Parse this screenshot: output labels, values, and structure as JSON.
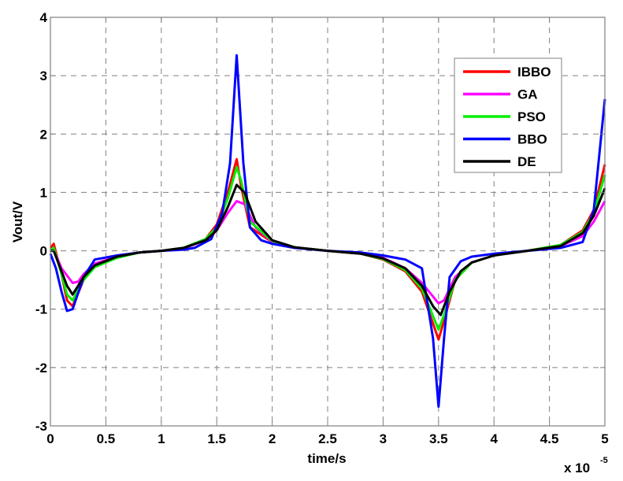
{
  "chart_data": {
    "type": "line",
    "title": "",
    "xlabel": "time/s",
    "ylabel": "Vout/V",
    "x_multiplier_label": "x 10",
    "x_multiplier_exp": "-5",
    "xlim": [
      0,
      5
    ],
    "ylim": [
      -3,
      4
    ],
    "xticks": [
      0,
      0.5,
      1,
      1.5,
      2,
      2.5,
      3,
      3.5,
      4,
      4.5,
      5
    ],
    "xtick_labels": [
      "0",
      "0.5",
      "1",
      "1.5",
      "2",
      "2.5",
      "3",
      "3.5",
      "4",
      "4.5",
      "5"
    ],
    "yticks": [
      -3,
      -2,
      -1,
      0,
      1,
      2,
      3,
      4
    ],
    "ytick_labels": [
      "-3",
      "-2",
      "-1",
      "0",
      "1",
      "2",
      "3",
      "4"
    ],
    "grid": true,
    "legend_position": "upper right",
    "series": [
      {
        "name": "IBBO",
        "color": "#ff0000",
        "x": [
          0,
          0.03,
          0.1,
          0.15,
          0.2,
          0.3,
          0.4,
          0.6,
          0.8,
          1.0,
          1.2,
          1.4,
          1.5,
          1.6,
          1.68,
          1.72,
          1.8,
          2.0,
          2.2,
          2.5,
          2.8,
          3.0,
          3.2,
          3.35,
          3.5,
          3.55,
          3.65,
          3.8,
          4.0,
          4.3,
          4.6,
          4.8,
          4.9,
          5.0
        ],
        "y": [
          0.05,
          0.12,
          -0.4,
          -0.85,
          -0.95,
          -0.5,
          -0.25,
          -0.1,
          -0.03,
          0,
          0.05,
          0.2,
          0.45,
          1.0,
          1.57,
          1.1,
          0.4,
          0.15,
          0.06,
          0,
          -0.05,
          -0.15,
          -0.35,
          -0.7,
          -1.52,
          -1.2,
          -0.5,
          -0.2,
          -0.08,
          0,
          0.1,
          0.35,
          0.7,
          1.48
        ]
      },
      {
        "name": "GA",
        "color": "#ff00ff",
        "x": [
          0,
          0.03,
          0.1,
          0.2,
          0.25,
          0.3,
          0.4,
          0.6,
          0.8,
          1.0,
          1.2,
          1.4,
          1.5,
          1.6,
          1.68,
          1.75,
          1.85,
          2.0,
          2.2,
          2.5,
          2.8,
          3.0,
          3.2,
          3.35,
          3.5,
          3.55,
          3.65,
          3.8,
          4.0,
          4.3,
          4.6,
          4.8,
          4.9,
          5.0
        ],
        "y": [
          0,
          0.02,
          -0.3,
          -0.55,
          -0.53,
          -0.4,
          -0.22,
          -0.1,
          -0.03,
          0,
          0.04,
          0.18,
          0.35,
          0.65,
          0.85,
          0.8,
          0.4,
          0.15,
          0.06,
          0,
          -0.05,
          -0.12,
          -0.3,
          -0.55,
          -0.9,
          -0.85,
          -0.45,
          -0.2,
          -0.08,
          0,
          0.08,
          0.25,
          0.5,
          0.85
        ]
      },
      {
        "name": "PSO",
        "color": "#00ee00",
        "x": [
          0,
          0.03,
          0.1,
          0.15,
          0.2,
          0.3,
          0.4,
          0.6,
          0.8,
          1.0,
          1.2,
          1.4,
          1.5,
          1.6,
          1.68,
          1.72,
          1.8,
          2.0,
          2.2,
          2.5,
          2.8,
          3.0,
          3.2,
          3.35,
          3.5,
          3.55,
          3.65,
          3.8,
          4.0,
          4.3,
          4.6,
          4.8,
          4.9,
          5.0
        ],
        "y": [
          0,
          0.05,
          -0.4,
          -0.75,
          -0.85,
          -0.5,
          -0.28,
          -0.12,
          -0.03,
          0,
          0.05,
          0.2,
          0.4,
          0.9,
          1.43,
          1.2,
          0.5,
          0.17,
          0.06,
          0,
          -0.05,
          -0.14,
          -0.33,
          -0.65,
          -1.35,
          -1.1,
          -0.5,
          -0.2,
          -0.08,
          0,
          0.1,
          0.32,
          0.65,
          1.3
        ]
      },
      {
        "name": "BBO",
        "color": "#0000ff",
        "x": [
          0,
          0.05,
          0.1,
          0.15,
          0.2,
          0.3,
          0.4,
          0.6,
          0.8,
          1.0,
          1.2,
          1.3,
          1.45,
          1.55,
          1.62,
          1.68,
          1.74,
          1.8,
          1.9,
          2.0,
          2.2,
          2.5,
          2.8,
          3.0,
          3.2,
          3.35,
          3.45,
          3.5,
          3.55,
          3.6,
          3.7,
          3.8,
          4.0,
          4.3,
          4.6,
          4.8,
          4.9,
          5.0
        ],
        "y": [
          -0.05,
          -0.3,
          -0.7,
          -1.03,
          -1.0,
          -0.45,
          -0.15,
          -0.08,
          -0.03,
          0,
          0.02,
          0.05,
          0.2,
          0.65,
          1.5,
          3.35,
          1.5,
          0.4,
          0.18,
          0.12,
          0.05,
          0,
          -0.03,
          -0.08,
          -0.15,
          -0.3,
          -1.5,
          -2.67,
          -1.5,
          -0.45,
          -0.18,
          -0.1,
          -0.05,
          0,
          0.05,
          0.15,
          0.7,
          2.6
        ]
      },
      {
        "name": "DE",
        "color": "#000000",
        "x": [
          0,
          0.03,
          0.1,
          0.15,
          0.2,
          0.3,
          0.4,
          0.6,
          0.8,
          1.0,
          1.2,
          1.4,
          1.5,
          1.6,
          1.68,
          1.75,
          1.85,
          2.0,
          2.2,
          2.5,
          2.8,
          3.0,
          3.2,
          3.35,
          3.45,
          3.52,
          3.6,
          3.7,
          3.8,
          4.0,
          4.3,
          4.6,
          4.8,
          4.9,
          5.0
        ],
        "y": [
          0,
          0,
          -0.35,
          -0.6,
          -0.75,
          -0.45,
          -0.25,
          -0.1,
          -0.03,
          0,
          0.05,
          0.18,
          0.35,
          0.75,
          1.13,
          1.0,
          0.5,
          0.18,
          0.06,
          0,
          -0.05,
          -0.13,
          -0.3,
          -0.6,
          -0.95,
          -1.1,
          -0.7,
          -0.35,
          -0.2,
          -0.08,
          0,
          0.08,
          0.3,
          0.6,
          1.07
        ]
      }
    ]
  },
  "legend": {
    "items": [
      {
        "label": "IBBO",
        "color": "#ff0000"
      },
      {
        "label": "GA",
        "color": "#ff00ff"
      },
      {
        "label": "PSO",
        "color": "#00ee00"
      },
      {
        "label": "BBO",
        "color": "#0000ff"
      },
      {
        "label": "DE",
        "color": "#000000"
      }
    ]
  }
}
